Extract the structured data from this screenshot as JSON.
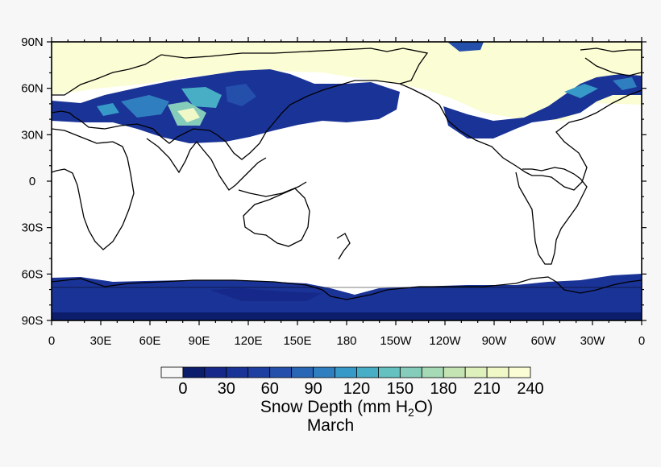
{
  "map": {
    "projection": "cylindrical-equidistant",
    "lon_range": [
      0,
      360
    ],
    "lat_range": [
      -90,
      90
    ],
    "x_tick_labels": [
      "0",
      "30E",
      "60E",
      "90E",
      "120E",
      "150E",
      "180",
      "150W",
      "120W",
      "90W",
      "60W",
      "30W",
      "0"
    ],
    "y_tick_labels": [
      "90N",
      "60N",
      "30N",
      "0",
      "30S",
      "60S",
      "90S"
    ],
    "background_fill": "#ffffff",
    "coastline_color": "#000000"
  },
  "colorbar": {
    "tick_labels": [
      "0",
      "30",
      "60",
      "90",
      "120",
      "150",
      "180",
      "210",
      "240"
    ],
    "colors": [
      "#f7f7f7",
      "#0b1d6b",
      "#16298a",
      "#1a3396",
      "#1e3ea2",
      "#2450ac",
      "#2a66b6",
      "#2f7fc0",
      "#3699c7",
      "#48aec5",
      "#65c0c0",
      "#86ccba",
      "#a6d9b5",
      "#c5e4b4",
      "#def0bc",
      "#f0f8c8",
      "#fbfdd4"
    ],
    "label_prefix": "Snow Depth (mm H",
    "label_sub": "2",
    "label_suffix": "O)"
  },
  "subtitle": "March"
}
